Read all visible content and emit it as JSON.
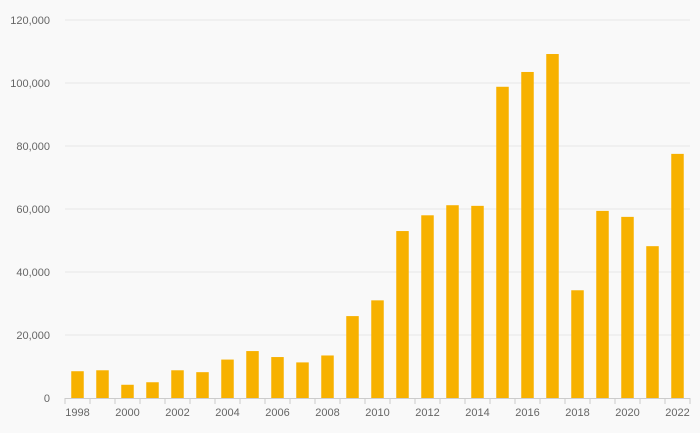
{
  "chart_data": {
    "type": "bar",
    "title": "",
    "xlabel": "",
    "ylabel": "",
    "categories": [
      "1998",
      "1999",
      "2000",
      "2001",
      "2002",
      "2003",
      "2004",
      "2005",
      "2006",
      "2007",
      "2008",
      "2009",
      "2010",
      "2011",
      "2012",
      "2013",
      "2014",
      "2015",
      "2016",
      "2017",
      "2018",
      "2019",
      "2020",
      "2021",
      "2022"
    ],
    "values": [
      8500,
      8800,
      4200,
      5000,
      8800,
      8200,
      12200,
      14900,
      13000,
      11300,
      13500,
      26000,
      31000,
      53000,
      58000,
      61200,
      61000,
      98800,
      103500,
      109200,
      34200,
      59400,
      57500,
      48200,
      77500
    ],
    "x_tick_labels": [
      "1998",
      "2000",
      "2002",
      "2004",
      "2006",
      "2008",
      "2010",
      "2012",
      "2014",
      "2016",
      "2018",
      "2020",
      "2022"
    ],
    "y_tick_labels": [
      "0",
      "20,000",
      "40,000",
      "60,000",
      "80,000",
      "100,000",
      "120,000"
    ],
    "y_ticks": [
      0,
      20000,
      40000,
      60000,
      80000,
      100000,
      120000
    ],
    "ylim": [
      0,
      120000
    ],
    "grid": true,
    "legend": "none",
    "bar_color": "#f7b100"
  }
}
